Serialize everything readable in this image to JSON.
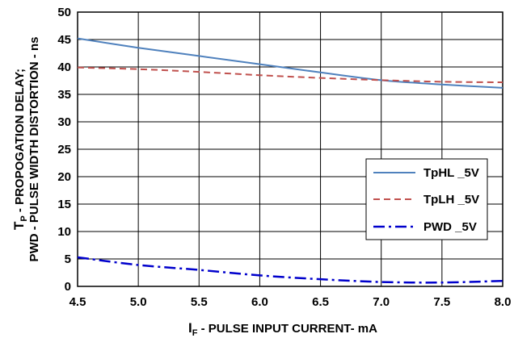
{
  "chart_data": {
    "type": "line",
    "xlabel": {
      "main": "I",
      "sub": "F",
      "rest": " - PULSE INPUT CURRENT- mA"
    },
    "ylabel": {
      "line1_main": "T",
      "line1_sub": "P",
      "line1_rest": " - PROPOGATION DELAY;",
      "line2": "PWD - PULSE WIDTH DISTORTION - ns"
    },
    "xlim": [
      4.5,
      8.0
    ],
    "ylim": [
      0,
      50
    ],
    "x_ticks": [
      "4.5",
      "5.0",
      "5.5",
      "6.0",
      "6.5",
      "7.0",
      "7.5",
      "8.0"
    ],
    "y_ticks": [
      "0",
      "5",
      "10",
      "15",
      "20",
      "25",
      "30",
      "35",
      "40",
      "45",
      "50"
    ],
    "grid": true,
    "legend_position": "right",
    "series": [
      {
        "name": "TpHL _5V",
        "color": "#4f81bd",
        "style": "solid",
        "x": [
          4.5,
          5.0,
          5.5,
          6.0,
          6.5,
          7.0,
          7.5,
          8.0
        ],
        "y": [
          45.2,
          43.5,
          42.0,
          40.5,
          39.0,
          37.6,
          36.8,
          36.2
        ]
      },
      {
        "name": "TpLH _5V",
        "color": "#c0504d",
        "style": "dash",
        "x": [
          4.5,
          5.0,
          5.5,
          6.0,
          6.5,
          7.0,
          7.5,
          8.0
        ],
        "y": [
          39.9,
          39.6,
          39.1,
          38.5,
          38.0,
          37.6,
          37.3,
          37.2
        ]
      },
      {
        "name": "PWD _5V",
        "color": "#0000cc",
        "style": "dashdot",
        "x": [
          4.5,
          5.0,
          5.5,
          6.0,
          6.5,
          7.0,
          7.5,
          8.0
        ],
        "y": [
          5.3,
          3.9,
          3.0,
          2.0,
          1.3,
          0.8,
          0.7,
          1.0
        ]
      }
    ]
  }
}
